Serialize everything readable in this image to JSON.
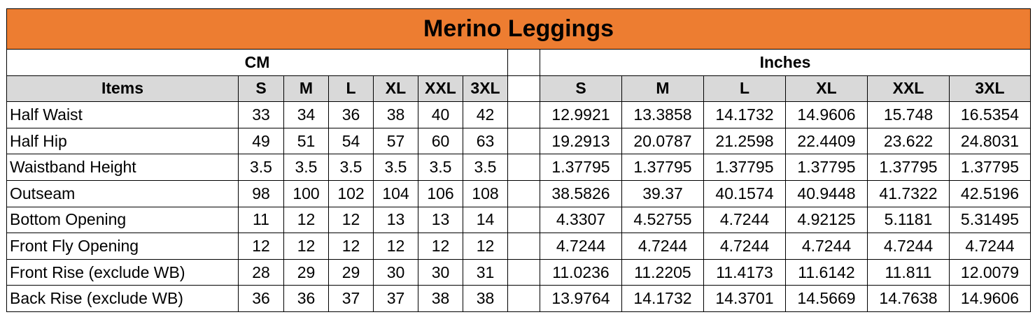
{
  "title": "Merino Leggings",
  "groups": {
    "cm": "CM",
    "inches": "Inches"
  },
  "headers": {
    "items": "Items",
    "cm_sizes": [
      "S",
      "M",
      "L",
      "XL",
      "XXL",
      "3XL"
    ],
    "inch_sizes": [
      "S",
      "M",
      "L",
      "XL",
      "XXL",
      "3XL"
    ]
  },
  "rows": [
    {
      "item": "Half Waist",
      "cm": [
        "33",
        "34",
        "36",
        "38",
        "40",
        "42"
      ],
      "inches": [
        "12.9921",
        "13.3858",
        "14.1732",
        "14.9606",
        "15.748",
        "16.5354"
      ]
    },
    {
      "item": "Half Hip",
      "cm": [
        "49",
        "51",
        "54",
        "57",
        "60",
        "63"
      ],
      "inches": [
        "19.2913",
        "20.0787",
        "21.2598",
        "22.4409",
        "23.622",
        "24.8031"
      ]
    },
    {
      "item": "Waistband Height",
      "cm": [
        "3.5",
        "3.5",
        "3.5",
        "3.5",
        "3.5",
        "3.5"
      ],
      "inches": [
        "1.37795",
        "1.37795",
        "1.37795",
        "1.37795",
        "1.37795",
        "1.37795"
      ]
    },
    {
      "item": "Outseam",
      "cm": [
        "98",
        "100",
        "102",
        "104",
        "106",
        "108"
      ],
      "inches": [
        "38.5826",
        "39.37",
        "40.1574",
        "40.9448",
        "41.7322",
        "42.5196"
      ]
    },
    {
      "item": "Bottom Opening",
      "cm": [
        "11",
        "12",
        "12",
        "13",
        "13",
        "14"
      ],
      "inches": [
        "4.3307",
        "4.52755",
        "4.7244",
        "4.92125",
        "5.1181",
        "5.31495"
      ]
    },
    {
      "item": "Front Fly Opening",
      "cm": [
        "12",
        "12",
        "12",
        "12",
        "12",
        "12"
      ],
      "inches": [
        "4.7244",
        "4.7244",
        "4.7244",
        "4.7244",
        "4.7244",
        "4.7244"
      ]
    },
    {
      "item": "Front Rise (exclude WB)",
      "cm": [
        "28",
        "29",
        "29",
        "30",
        "30",
        "31"
      ],
      "inches": [
        "11.0236",
        "11.2205",
        "11.4173",
        "11.6142",
        "11.811",
        "12.0079"
      ]
    },
    {
      "item": "Back Rise (exclude WB)",
      "cm": [
        "36",
        "36",
        "37",
        "37",
        "38",
        "38"
      ],
      "inches": [
        "13.9764",
        "14.1732",
        "14.3701",
        "14.5669",
        "14.7638",
        "14.9606"
      ]
    }
  ]
}
